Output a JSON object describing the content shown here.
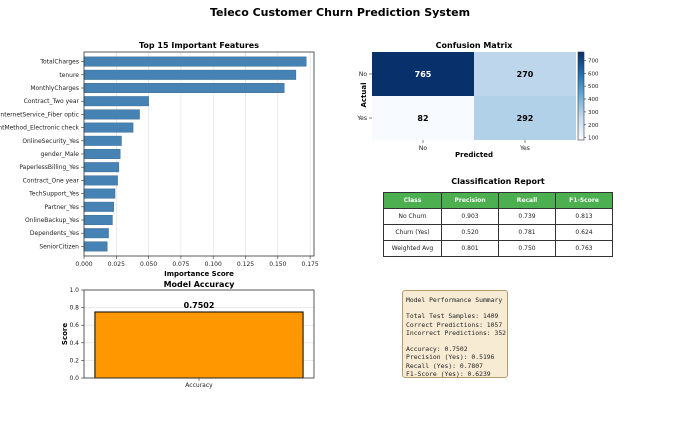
{
  "suptitle": "Teleco Customer Churn Prediction System",
  "chart_data": [
    {
      "type": "bar",
      "orientation": "horizontal",
      "title": "Top 15 Important Features",
      "xlabel": "Importance Score",
      "ylabel": "",
      "xlim": [
        0,
        0.178
      ],
      "xticks": [
        "0.000",
        "0.025",
        "0.050",
        "0.075",
        "0.100",
        "0.125",
        "0.150",
        "0.175"
      ],
      "grid": "x",
      "color": "#4682b4",
      "categories": [
        "TotalCharges",
        "tenure",
        "MonthlyCharges",
        "Contract_Two year",
        "InternetService_Fiber optic",
        "PaymentMethod_Electronic check",
        "OnlineSecurity_Yes",
        "gender_Male",
        "PaperlessBilling_Yes",
        "Contract_One year",
        "TechSupport_Yes",
        "Partner_Yes",
        "OnlineBackup_Yes",
        "Dependents_Yes",
        "SeniorCitizen"
      ],
      "values": [
        0.172,
        0.164,
        0.155,
        0.05,
        0.043,
        0.038,
        0.029,
        0.028,
        0.027,
        0.026,
        0.024,
        0.023,
        0.022,
        0.019,
        0.018
      ]
    },
    {
      "type": "heatmap",
      "title": "Confusion Matrix",
      "xlabel": "Predicted",
      "ylabel": "Actual",
      "x": [
        "No",
        "Yes"
      ],
      "y": [
        "No",
        "Yes"
      ],
      "values": [
        [
          765,
          270
        ],
        [
          82,
          292
        ]
      ],
      "colormap": "Blues",
      "colorbar": {
        "min": 82,
        "max": 765,
        "ticks": [
          "100",
          "200",
          "300",
          "400",
          "500",
          "600",
          "700"
        ]
      }
    },
    {
      "type": "table",
      "title": "Classification Report",
      "columns": [
        "Class",
        "Precision",
        "Recall",
        "F1-Score"
      ],
      "rows": [
        [
          "No Churn",
          "0.903",
          "0.739",
          "0.813"
        ],
        [
          "Churn (Yes)",
          "0.520",
          "0.781",
          "0.624"
        ],
        [
          "Weighted Avg",
          "0.801",
          "0.750",
          "0.763"
        ]
      ],
      "header_color": "#4caf50"
    },
    {
      "type": "bar",
      "title": "Model Accuracy",
      "xlabel": "",
      "ylabel": "Score",
      "categories": [
        "Accuracy"
      ],
      "values": [
        0.7502
      ],
      "value_label": "0.7502",
      "ylim": [
        0,
        1.0
      ],
      "yticks": [
        "0.0",
        "0.2",
        "0.4",
        "0.6",
        "0.8",
        "1.0"
      ],
      "grid": "y",
      "color": "#ff9800"
    }
  ],
  "summary": {
    "lines": [
      "Model Performance Summary",
      "",
      "Total Test Samples: 1409",
      "Correct Predictions: 1057",
      "Incorrect Predictions: 352",
      "",
      "Accuracy: 0.7502",
      "Precision (Yes): 0.5196",
      "Recall (Yes): 0.7807",
      "F1-Score (Yes): 0.6239"
    ]
  }
}
